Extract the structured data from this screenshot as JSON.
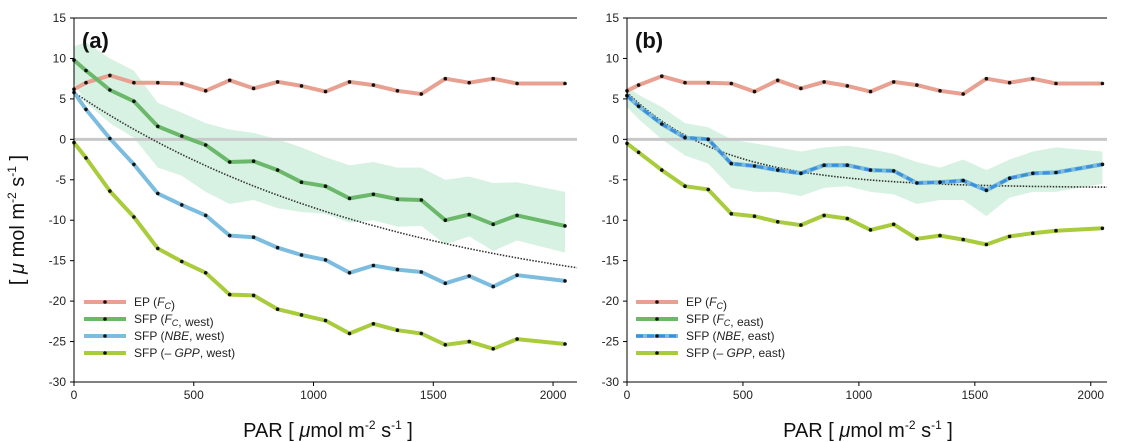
{
  "figure": {
    "ylabel_html": "[ μ mol m⁻² s⁻¹ ]",
    "ylabel_parts": {
      "a": "[ ",
      "mu": "μ",
      "b": " mol m",
      "e1": "-2",
      "c": " s",
      "e2": "-1",
      "d": " ]"
    },
    "xlabel_parts": {
      "a": "PAR [ ",
      "mu": "μ",
      "b": "mol m",
      "e1": "-2",
      "c": " s",
      "e2": "-1",
      "d": " ]"
    }
  },
  "colors": {
    "ep": "#e8a090",
    "sfp_fc": "#6bb86b",
    "sfp_nbe": "#7bbcdf",
    "sfp_nbe_dash": "#3a8fe0",
    "sfp_gpp": "#a9cc3c",
    "band": "#c9eed9",
    "zero_line": "#c8c8c8",
    "fit": "#333333"
  },
  "chart_data": [
    {
      "type": "line",
      "panel": "(b)",
      "panel_label": "(a)",
      "xlim": [
        0,
        2100
      ],
      "ylim": [
        -30,
        15
      ],
      "xticks": [
        0,
        500,
        1000,
        1500,
        2000
      ],
      "yticks": [
        15,
        10,
        5,
        0,
        -5,
        -10,
        -15,
        -20,
        -25,
        -30
      ],
      "x": [
        0,
        50,
        150,
        250,
        350,
        450,
        550,
        650,
        750,
        850,
        950,
        1050,
        1150,
        1250,
        1350,
        1450,
        1550,
        1650,
        1750,
        1850,
        2050
      ],
      "series": [
        {
          "key": "ep",
          "values": [
            6.2,
            7.0,
            7.9,
            7.0,
            7.0,
            6.9,
            6.0,
            7.3,
            6.3,
            7.1,
            6.6,
            5.9,
            7.1,
            6.7,
            6.0,
            5.6,
            7.5,
            7.0,
            7.5,
            6.9,
            6.9
          ]
        },
        {
          "key": "sfp_fc",
          "values": [
            9.8,
            8.5,
            6.1,
            4.7,
            1.6,
            0.4,
            -0.7,
            -2.8,
            -2.7,
            -3.8,
            -5.3,
            -5.8,
            -7.3,
            -6.8,
            -7.4,
            -7.5,
            -10.0,
            -9.3,
            -10.5,
            -9.4,
            -10.7
          ]
        },
        {
          "key": "sfp_nbe",
          "values": [
            5.8,
            3.7,
            0.1,
            -3.1,
            -6.7,
            -8.1,
            -9.4,
            -11.9,
            -12.1,
            -13.4,
            -14.3,
            -14.9,
            -16.5,
            -15.6,
            -16.1,
            -16.4,
            -17.8,
            -16.9,
            -18.2,
            -16.8,
            -17.5
          ]
        },
        {
          "key": "sfp_gpp",
          "values": [
            -0.4,
            -2.3,
            -6.4,
            -9.6,
            -13.5,
            -15.1,
            -16.5,
            -19.2,
            -19.3,
            -21.0,
            -21.7,
            -22.4,
            -24.0,
            -22.8,
            -23.6,
            -24.0,
            -25.4,
            -25.0,
            -25.9,
            -24.7,
            -25.3
          ]
        }
      ],
      "band": {
        "upper": [
          11.5,
          12.0,
          10.0,
          8.5,
          4.5,
          3.3,
          2.0,
          1.2,
          0.8,
          0.0,
          -1.0,
          -2.2,
          -3.2,
          -2.8,
          -3.5,
          -3.5,
          -5.0,
          -4.6,
          -5.4,
          -5.3,
          -6.5
        ],
        "lower": [
          7.0,
          4.5,
          2.0,
          0.2,
          -3.5,
          -4.5,
          -6.5,
          -8.0,
          -7.5,
          -8.5,
          -9.0,
          -9.2,
          -10.3,
          -10.0,
          -10.8,
          -10.7,
          -13.0,
          -12.0,
          -13.8,
          -12.5,
          -14.0
        ]
      },
      "fit_anchor": {
        "y0": 5.8,
        "asymptote": -22.1,
        "k": 1400
      },
      "legend": [
        {
          "label": "EP",
          "italic": "(F_c)"
        },
        {
          "label": "SFP",
          "italic": "(F_c, west)"
        },
        {
          "label": "SFP",
          "italic": "(NBE, west)"
        },
        {
          "label": "SFP",
          "italic": "(– GPP, west)"
        }
      ]
    },
    {
      "type": "line",
      "panel": "(b)",
      "panel_label": "(b)",
      "xlim": [
        0,
        2070
      ],
      "ylim": [
        -30,
        15
      ],
      "xticks": [
        0,
        500,
        1000,
        1500,
        2000
      ],
      "yticks": [
        15,
        10,
        5,
        0,
        -5,
        -10,
        -15,
        -20,
        -25,
        -30
      ],
      "x": [
        0,
        50,
        150,
        250,
        350,
        450,
        550,
        650,
        750,
        850,
        950,
        1050,
        1150,
        1250,
        1350,
        1450,
        1550,
        1650,
        1750,
        1850,
        2050
      ],
      "series": [
        {
          "key": "ep",
          "values": [
            6.0,
            6.7,
            7.8,
            7.0,
            7.0,
            6.9,
            5.9,
            7.3,
            6.3,
            7.1,
            6.6,
            5.9,
            7.1,
            6.7,
            6.0,
            5.6,
            7.5,
            7.0,
            7.5,
            6.9,
            6.9
          ]
        },
        {
          "key": "sfp_fc",
          "values": [
            5.4,
            4.1,
            1.9,
            0.2,
            0.0,
            -3.0,
            -3.3,
            -3.8,
            -4.2,
            -3.2,
            -3.2,
            -3.8,
            -3.9,
            -5.4,
            -5.3,
            -5.1,
            -6.3,
            -4.8,
            -4.2,
            -4.1,
            -3.1
          ]
        },
        {
          "key": "sfp_nbe",
          "values": [
            5.4,
            4.1,
            1.9,
            0.2,
            0.0,
            -3.0,
            -3.3,
            -3.8,
            -4.2,
            -3.2,
            -3.2,
            -3.8,
            -3.9,
            -5.4,
            -5.3,
            -5.1,
            -6.3,
            -4.8,
            -4.2,
            -4.1,
            -3.1
          ]
        },
        {
          "key": "sfp_gpp",
          "values": [
            -0.5,
            -1.6,
            -3.8,
            -5.8,
            -6.2,
            -9.2,
            -9.5,
            -10.2,
            -10.6,
            -9.4,
            -9.8,
            -11.2,
            -10.5,
            -12.3,
            -11.9,
            -12.4,
            -13.0,
            -12.0,
            -11.6,
            -11.3,
            -11.0
          ]
        }
      ],
      "band": {
        "upper": [
          6.5,
          5.5,
          4.0,
          2.0,
          1.5,
          0.0,
          -0.5,
          -1.0,
          -1.5,
          -1.0,
          -0.8,
          -1.2,
          -1.8,
          -2.8,
          -3.5,
          -2.5,
          -3.8,
          -2.5,
          -1.5,
          -1.0,
          -1.5
        ],
        "lower": [
          4.0,
          2.5,
          0.0,
          -2.0,
          -3.0,
          -6.0,
          -6.5,
          -6.5,
          -7.0,
          -6.0,
          -5.8,
          -6.5,
          -6.8,
          -8.0,
          -7.5,
          -7.5,
          -9.5,
          -7.2,
          -6.5,
          -6.5,
          -5.5
        ]
      },
      "fit_anchor": {
        "y0": 5.8,
        "asymptote": -6.0,
        "k": 420
      },
      "legend": [
        {
          "label": "EP",
          "italic": "(F_c)"
        },
        {
          "label": "SFP",
          "italic": "(F_c, east)"
        },
        {
          "label": "SFP",
          "italic": "(NBE, east)"
        },
        {
          "label": "SFP",
          "italic": "(– GPP, east)"
        }
      ]
    }
  ]
}
